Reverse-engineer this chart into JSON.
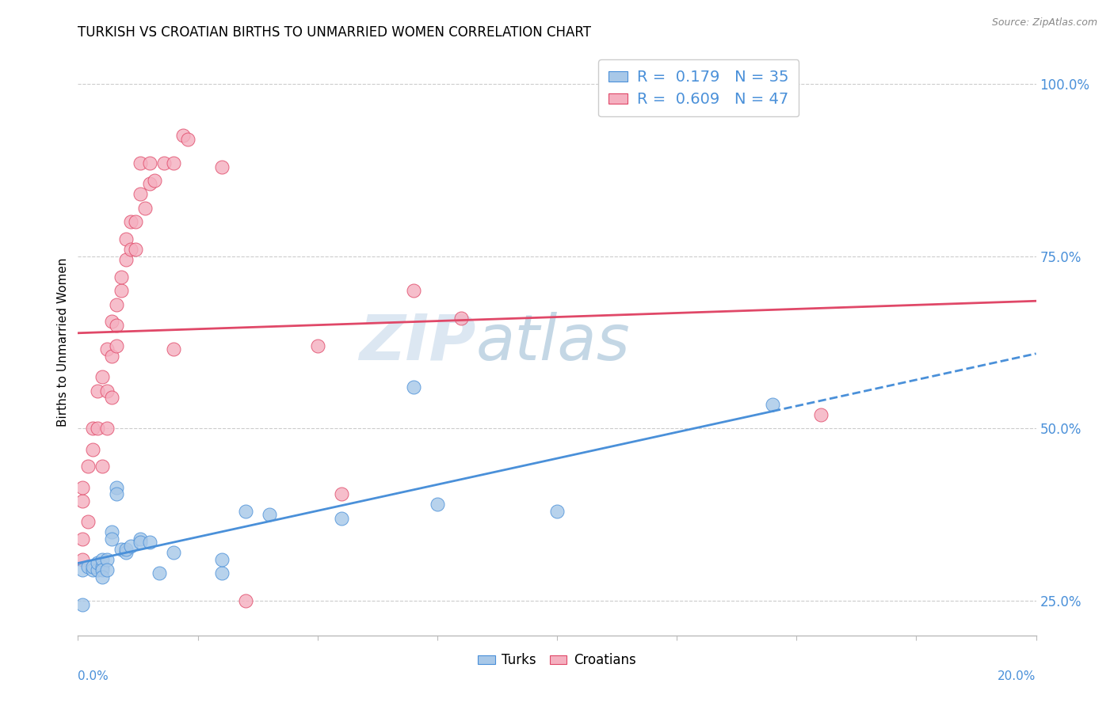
{
  "title": "TURKISH VS CROATIAN BIRTHS TO UNMARRIED WOMEN CORRELATION CHART",
  "source": "Source: ZipAtlas.com",
  "ylabel": "Births to Unmarried Women",
  "turks_R": 0.179,
  "turks_N": 35,
  "croatians_R": 0.609,
  "croatians_N": 47,
  "turks_color": "#a8c8e8",
  "croatians_color": "#f5b0c0",
  "turks_line_color": "#4a90d9",
  "croatians_line_color": "#e04868",
  "right_label_color": "#4a90d9",
  "watermark_zip_color": "#c8d8ea",
  "watermark_atlas_color": "#9ab8d0",
  "xlim": [
    0.0,
    0.2
  ],
  "ylim": [
    0.2,
    1.05
  ],
  "xticklabels_left": "0.0%",
  "xticklabels_right": "20.0%",
  "ytick_vals": [
    0.25,
    0.5,
    0.75,
    1.0
  ],
  "ytick_labels": [
    "25.0%",
    "50.0%",
    "75.0%",
    "100.0%"
  ],
  "turks_scatter_x": [
    0.001,
    0.001,
    0.002,
    0.003,
    0.003,
    0.004,
    0.004,
    0.005,
    0.005,
    0.005,
    0.005,
    0.006,
    0.006,
    0.007,
    0.007,
    0.008,
    0.008,
    0.009,
    0.01,
    0.01,
    0.011,
    0.013,
    0.013,
    0.015,
    0.017,
    0.02,
    0.03,
    0.03,
    0.035,
    0.04,
    0.055,
    0.07,
    0.075,
    0.1,
    0.145
  ],
  "turks_scatter_y": [
    0.295,
    0.245,
    0.3,
    0.295,
    0.3,
    0.295,
    0.305,
    0.3,
    0.31,
    0.295,
    0.285,
    0.31,
    0.295,
    0.35,
    0.34,
    0.415,
    0.405,
    0.325,
    0.32,
    0.325,
    0.33,
    0.34,
    0.335,
    0.335,
    0.29,
    0.32,
    0.29,
    0.31,
    0.38,
    0.375,
    0.37,
    0.56,
    0.39,
    0.38,
    0.535
  ],
  "croatians_scatter_x": [
    0.001,
    0.001,
    0.001,
    0.001,
    0.002,
    0.002,
    0.003,
    0.003,
    0.004,
    0.004,
    0.005,
    0.005,
    0.006,
    0.006,
    0.006,
    0.007,
    0.007,
    0.007,
    0.008,
    0.008,
    0.008,
    0.009,
    0.009,
    0.01,
    0.01,
    0.011,
    0.011,
    0.012,
    0.012,
    0.013,
    0.013,
    0.014,
    0.015,
    0.015,
    0.016,
    0.018,
    0.02,
    0.02,
    0.022,
    0.023,
    0.03,
    0.035,
    0.05,
    0.055,
    0.07,
    0.08,
    0.155
  ],
  "croatians_scatter_y": [
    0.31,
    0.34,
    0.395,
    0.415,
    0.365,
    0.445,
    0.47,
    0.5,
    0.5,
    0.555,
    0.445,
    0.575,
    0.5,
    0.555,
    0.615,
    0.545,
    0.605,
    0.655,
    0.65,
    0.68,
    0.62,
    0.7,
    0.72,
    0.745,
    0.775,
    0.76,
    0.8,
    0.76,
    0.8,
    0.84,
    0.885,
    0.82,
    0.855,
    0.885,
    0.86,
    0.885,
    0.615,
    0.885,
    0.925,
    0.92,
    0.88,
    0.25,
    0.62,
    0.405,
    0.7,
    0.66,
    0.52
  ]
}
